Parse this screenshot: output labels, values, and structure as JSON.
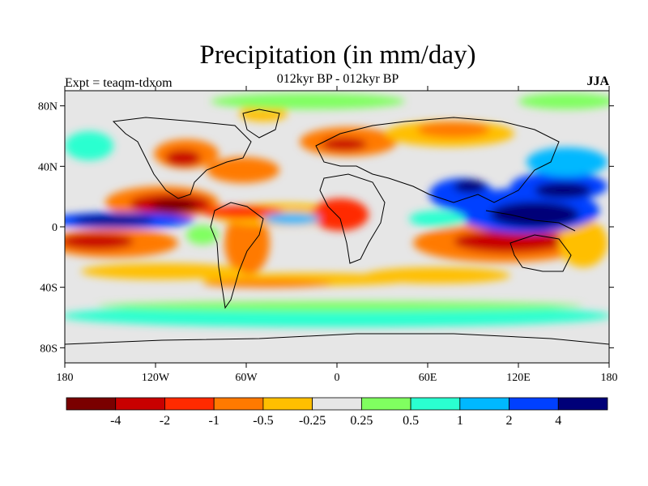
{
  "header": {
    "title": "Precipitation (in mm/day)",
    "subtitle": "012kyr BP - 012kyr BP",
    "left_label": "Expt = teaqm-tdxom",
    "right_label": "JJA"
  },
  "map": {
    "lat_ticks": [
      "80N",
      "40N",
      "0",
      "40S",
      "80S"
    ],
    "lon_ticks": [
      "180",
      "120W",
      "60W",
      "0",
      "60E",
      "120E",
      "180"
    ],
    "lat_tick_values": [
      80,
      40,
      0,
      -40,
      -80
    ],
    "lon_tick_values": [
      -180,
      -120,
      -60,
      0,
      60,
      120,
      180
    ],
    "ocean_background": "#e6e6e6"
  },
  "colorbar": {
    "colors": [
      "#7a0000",
      "#c80000",
      "#ff2a00",
      "#ff7a00",
      "#ffbf00",
      "#e6e6e6",
      "#80ff60",
      "#2affd0",
      "#00b8ff",
      "#0040ff",
      "#000078"
    ],
    "labels": [
      "-4",
      "-2",
      "-1",
      "-0.5",
      "-0.25",
      "0.25",
      "0.5",
      "1",
      "2",
      "4"
    ]
  }
}
